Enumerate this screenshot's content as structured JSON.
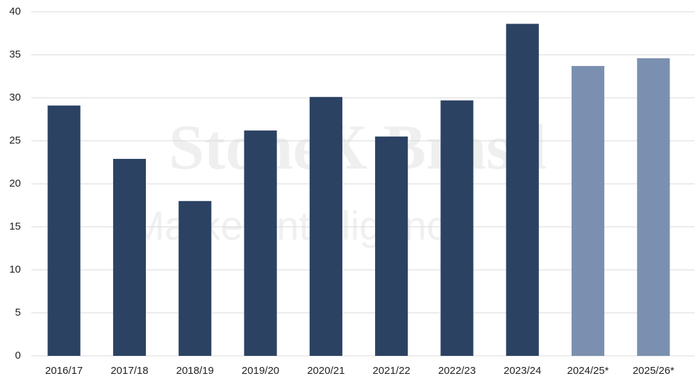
{
  "chart_data": {
    "type": "bar",
    "watermark": [
      "StoneX Brasil",
      "Market Intelligence"
    ],
    "categories": [
      "2016/17",
      "2017/18",
      "2018/19",
      "2019/20",
      "2020/21",
      "2021/22",
      "2022/23",
      "2023/24",
      "2024/25*",
      "2025/26*"
    ],
    "values": [
      29.1,
      22.9,
      18.0,
      26.2,
      30.1,
      25.5,
      29.7,
      38.6,
      33.7,
      34.6
    ],
    "colors": [
      "#2b4263",
      "#2b4263",
      "#2b4263",
      "#2b4263",
      "#2b4263",
      "#2b4263",
      "#2b4263",
      "#2b4263",
      "#7b90b0",
      "#7b90b0"
    ],
    "ylim": [
      0,
      40
    ],
    "yticks": [
      0,
      5,
      10,
      15,
      20,
      25,
      30,
      35,
      40
    ],
    "grid": true
  }
}
